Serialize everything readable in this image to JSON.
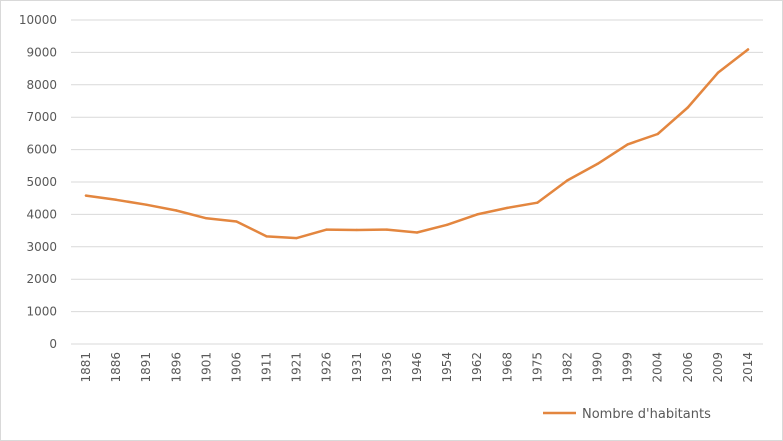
{
  "chart_data": {
    "type": "line",
    "categories": [
      "1881",
      "1886",
      "1891",
      "1896",
      "1901",
      "1906",
      "1911",
      "1921",
      "1926",
      "1931",
      "1936",
      "1946",
      "1954",
      "1962",
      "1968",
      "1975",
      "1982",
      "1990",
      "1999",
      "2004",
      "2006",
      "2009",
      "2014"
    ],
    "series": [
      {
        "name": "Nombre d'habitants",
        "values": [
          4580,
          4450,
          4300,
          4120,
          3880,
          3780,
          3320,
          3270,
          3530,
          3520,
          3530,
          3440,
          3680,
          4000,
          4200,
          4360,
          5050,
          5560,
          6160,
          6480,
          7300,
          8370,
          9090
        ]
      }
    ],
    "ylim": [
      0,
      10000
    ],
    "yticks": [
      "0",
      "1000",
      "2000",
      "3000",
      "4000",
      "5000",
      "6000",
      "7000",
      "8000",
      "9000",
      "10000"
    ],
    "grid": true,
    "legend_position": "bottom-right",
    "line_color": "#e3863f",
    "grid_color": "#d9d9d9"
  }
}
